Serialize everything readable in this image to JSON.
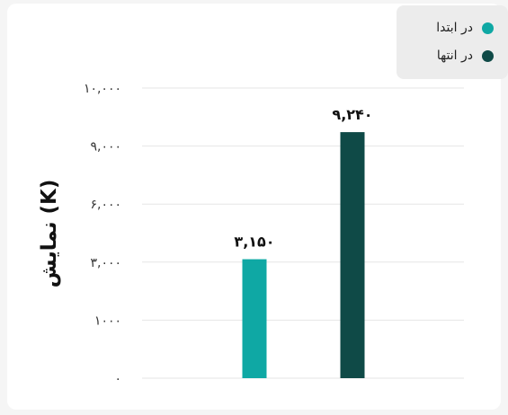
{
  "chart_data": {
    "type": "bar",
    "ylabel": "نمایش (K)",
    "y_ticks": [
      {
        "label": "۰",
        "value": 0
      },
      {
        "label": "۱۰۰۰",
        "value": 1000
      },
      {
        "label": "۳,۰۰۰",
        "value": 3000
      },
      {
        "label": "۶,۰۰۰",
        "value": 6000
      },
      {
        "label": "۹,۰۰۰",
        "value": 9000
      },
      {
        "label": "۱۰,۰۰۰",
        "value": 10000
      }
    ],
    "series": [
      {
        "name": "در ابتدا",
        "value": 3150,
        "value_label": "۳,۱۵۰",
        "color": "#0fa8a4"
      },
      {
        "name": "در انتها",
        "value": 9240,
        "value_label": "۹,۲۴۰",
        "color": "#0f4a47"
      }
    ],
    "legend_position": "top-right",
    "grid": true
  }
}
